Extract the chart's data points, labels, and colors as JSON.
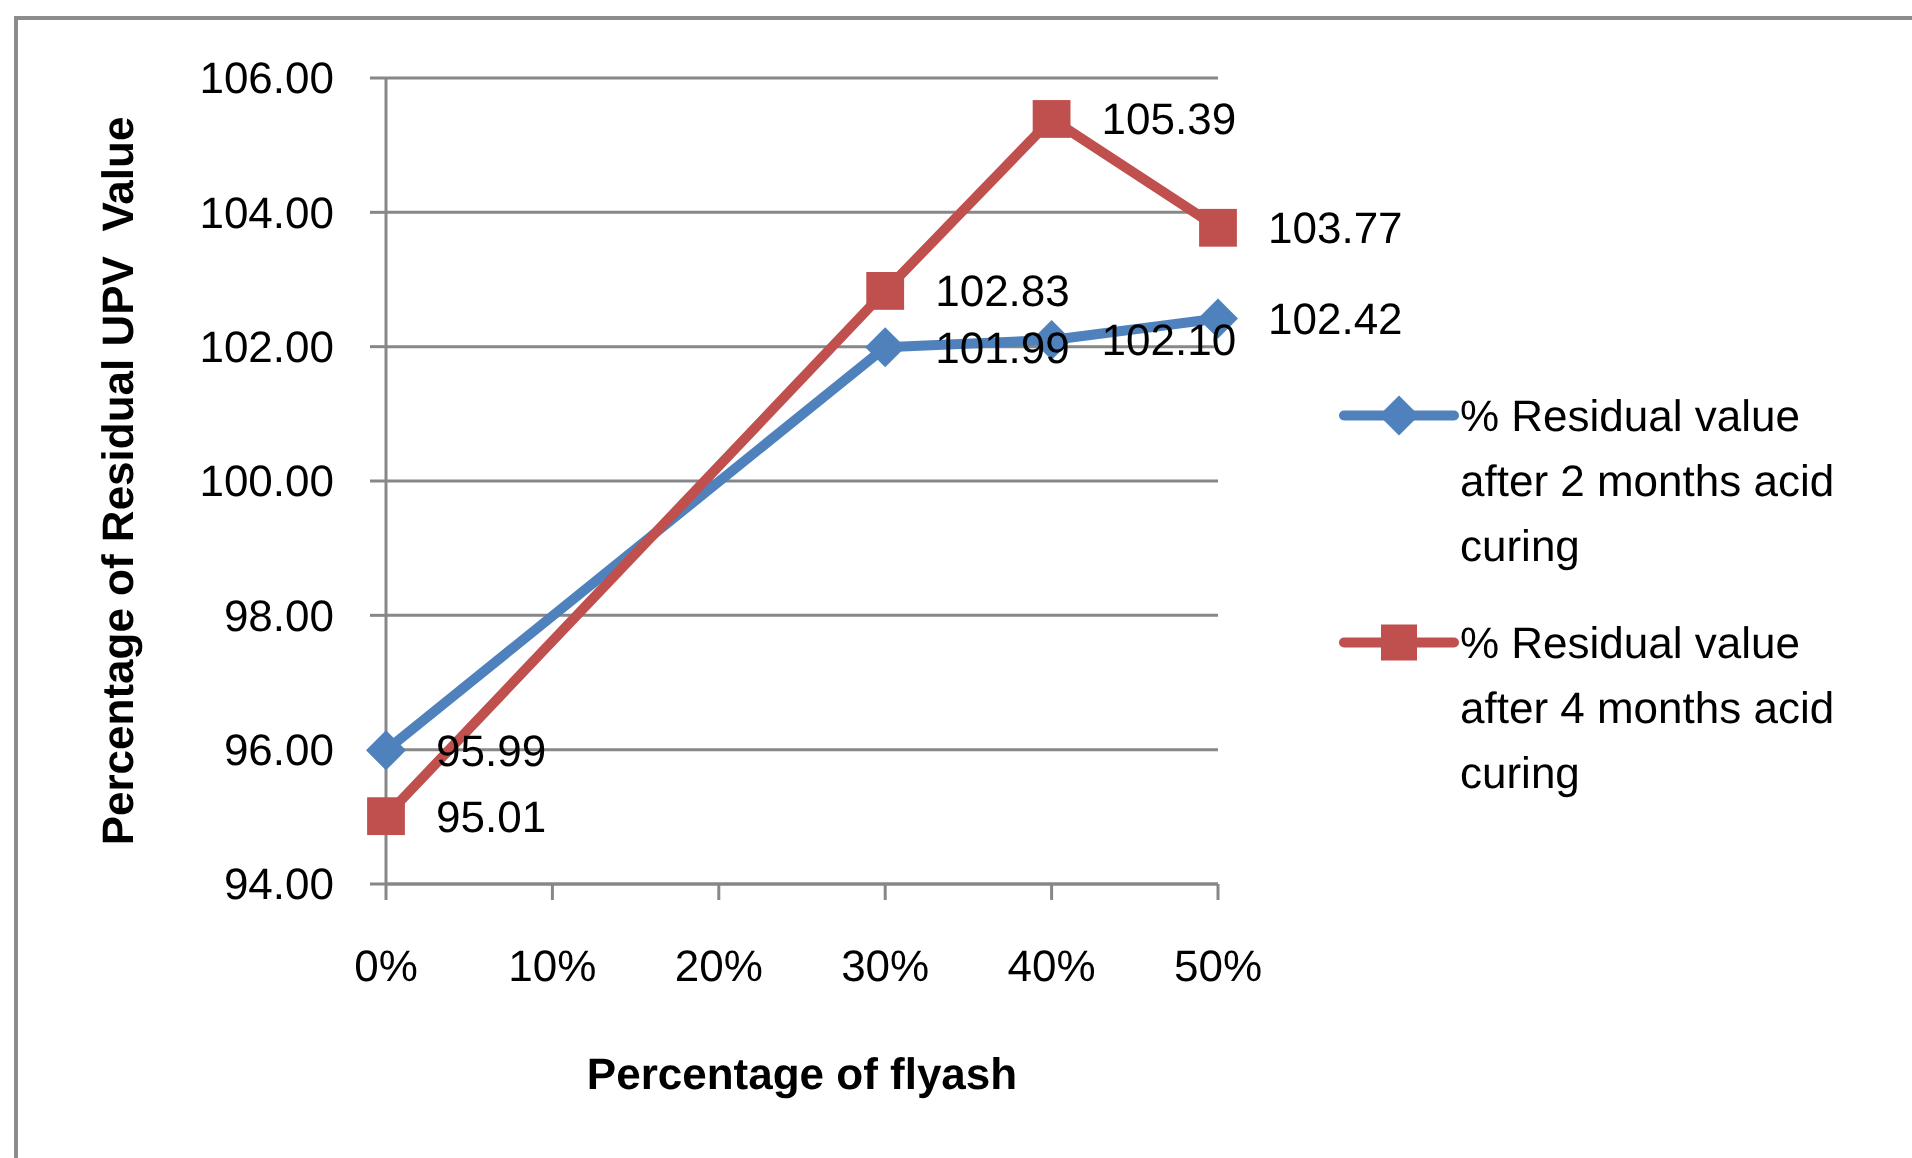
{
  "chart_data": {
    "type": "line",
    "xlabel": "Percentage of flyash",
    "ylabel": "Percentage of Residual UPV  Value",
    "x": [
      0,
      30,
      40,
      50
    ],
    "xlim": [
      0,
      50
    ],
    "xticks": [
      {
        "value": 0,
        "label": "0%"
      },
      {
        "value": 10,
        "label": "10%"
      },
      {
        "value": 20,
        "label": "20%"
      },
      {
        "value": 30,
        "label": "30%"
      },
      {
        "value": 40,
        "label": "40%"
      },
      {
        "value": 50,
        "label": "50%"
      }
    ],
    "ylim": [
      94,
      106
    ],
    "yticks": [
      {
        "value": 94,
        "label": "94.00"
      },
      {
        "value": 96,
        "label": "96.00"
      },
      {
        "value": 98,
        "label": "98.00"
      },
      {
        "value": 100,
        "label": "100.00"
      },
      {
        "value": 102,
        "label": "102.00"
      },
      {
        "value": 104,
        "label": "104.00"
      },
      {
        "value": 106,
        "label": "106.00"
      }
    ],
    "grid": "y",
    "legend": "right",
    "series": [
      {
        "name": "% Residual value after 2 months acid curing",
        "color": "#4f81bd",
        "marker": "diamond",
        "values": [
          95.99,
          101.99,
          102.1,
          102.42
        ],
        "value_labels": [
          "95.99",
          "101.99",
          "102.10",
          "102.42"
        ]
      },
      {
        "name": "% Residual value after 4 months acid curing",
        "color": "#c0504d",
        "marker": "square",
        "values": [
          95.01,
          102.83,
          105.39,
          103.77
        ],
        "value_labels": [
          "95.01",
          "102.83",
          "105.39",
          "103.77"
        ]
      }
    ]
  }
}
